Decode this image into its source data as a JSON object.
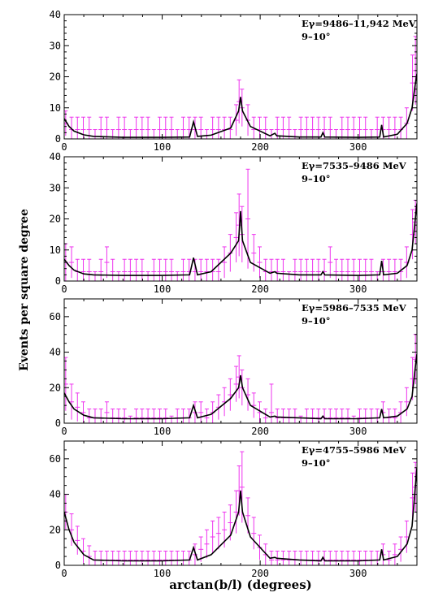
{
  "figure": {
    "ylabel": "Events per square degree",
    "xlabel": "arctan(b/l) (degrees)",
    "colors": {
      "errorbar": "#ee33ee",
      "model": "#000000",
      "frame": "#000000"
    }
  },
  "chart_data": [
    {
      "type": "line",
      "energy_label": "Eγ=9486–11,942 MeV",
      "bin_label": "9–10°",
      "xlim": [
        0,
        360
      ],
      "ylim": [
        0,
        40
      ],
      "xticks": [
        0,
        100,
        200,
        300
      ],
      "yticks": [
        0,
        10,
        20,
        30,
        40
      ],
      "model_curve": {
        "x": [
          0,
          5,
          10,
          20,
          30,
          60,
          100,
          128,
          132,
          136,
          150,
          170,
          178,
          180,
          182,
          190,
          210,
          215,
          217,
          240,
          262,
          264,
          266,
          300,
          322,
          324,
          326,
          340,
          350,
          355,
          358,
          360
        ],
        "y": [
          6.5,
          4,
          2.5,
          1.3,
          0.8,
          0.5,
          0.5,
          0.6,
          5.5,
          0.8,
          1.2,
          3.5,
          9,
          13.5,
          9,
          4,
          1,
          1.8,
          1,
          0.6,
          0.6,
          2,
          0.6,
          0.5,
          0.6,
          4.5,
          0.6,
          1.5,
          5,
          10,
          17,
          21
        ]
      },
      "errorbars": {
        "x": [
          1.5,
          7.5,
          13.5,
          19.5,
          25.5,
          31.5,
          37.5,
          43.5,
          49.5,
          55.5,
          61.5,
          67.5,
          73.5,
          79.5,
          85.5,
          91.5,
          97.5,
          103.5,
          109.5,
          115.5,
          121.5,
          127.5,
          133.5,
          139.5,
          145.5,
          151.5,
          157.5,
          163.5,
          169.5,
          175.5,
          178.5,
          181.5,
          187.5,
          193.5,
          199.5,
          205.5,
          211.5,
          217.5,
          223.5,
          229.5,
          235.5,
          241.5,
          247.5,
          253.5,
          259.5,
          265.5,
          271.5,
          277.5,
          283.5,
          289.5,
          295.5,
          301.5,
          307.5,
          313.5,
          319.5,
          325.5,
          331.5,
          337.5,
          343.5,
          349.5,
          355.5,
          358.5
        ],
        "y": [
          5,
          3,
          3,
          3,
          3,
          0,
          3,
          3,
          0,
          3,
          3,
          0,
          3,
          3,
          3,
          0,
          3,
          3,
          3,
          0,
          3,
          3,
          3,
          3,
          0,
          3,
          3,
          3,
          3,
          6,
          12,
          10,
          6,
          3,
          3,
          3,
          0,
          3,
          3,
          3,
          0,
          3,
          3,
          3,
          3,
          3,
          3,
          0,
          3,
          3,
          3,
          3,
          3,
          0,
          3,
          3,
          3,
          3,
          3,
          5,
          18,
          22
        ],
        "err": [
          4,
          4,
          4,
          4,
          4,
          3,
          4,
          4,
          3,
          4,
          4,
          3,
          4,
          4,
          4,
          3,
          4,
          4,
          4,
          3,
          4,
          4,
          4,
          4,
          3,
          4,
          4,
          4,
          4,
          5,
          7,
          6,
          5,
          4,
          4,
          4,
          3,
          4,
          4,
          4,
          3,
          4,
          4,
          4,
          4,
          4,
          4,
          3,
          4,
          4,
          4,
          4,
          4,
          3,
          4,
          4,
          4,
          4,
          4,
          5,
          9,
          11
        ]
      }
    },
    {
      "type": "line",
      "energy_label": "Eγ=7535–9486 MeV",
      "bin_label": "9–10°",
      "xlim": [
        0,
        360
      ],
      "ylim": [
        0,
        40
      ],
      "xticks": [
        0,
        100,
        200,
        300
      ],
      "yticks": [
        0,
        10,
        20,
        30,
        40
      ],
      "model_curve": {
        "x": [
          0,
          5,
          10,
          20,
          30,
          60,
          100,
          128,
          132,
          136,
          150,
          170,
          178,
          180,
          182,
          190,
          210,
          215,
          217,
          240,
          262,
          264,
          266,
          300,
          322,
          324,
          326,
          340,
          350,
          355,
          358,
          360
        ],
        "y": [
          7,
          5,
          3.5,
          2.3,
          2,
          1.8,
          1.8,
          2,
          7.5,
          2,
          3,
          9,
          13,
          22.5,
          13,
          6,
          2.5,
          3,
          2.5,
          2,
          2,
          3,
          2,
          1.8,
          2,
          6.5,
          2,
          2.5,
          5,
          10,
          19,
          25
        ]
      },
      "errorbars": {
        "x": [
          1.5,
          7.5,
          13.5,
          19.5,
          25.5,
          31.5,
          37.5,
          43.5,
          49.5,
          55.5,
          61.5,
          67.5,
          73.5,
          79.5,
          85.5,
          91.5,
          97.5,
          103.5,
          109.5,
          115.5,
          121.5,
          127.5,
          133.5,
          139.5,
          145.5,
          151.5,
          157.5,
          163.5,
          169.5,
          175.5,
          178.5,
          181.5,
          187.5,
          193.5,
          199.5,
          205.5,
          211.5,
          217.5,
          223.5,
          229.5,
          235.5,
          241.5,
          247.5,
          253.5,
          259.5,
          265.5,
          271.5,
          277.5,
          283.5,
          289.5,
          295.5,
          301.5,
          307.5,
          313.5,
          319.5,
          325.5,
          331.5,
          337.5,
          343.5,
          349.5,
          355.5,
          358.5
        ],
        "y": [
          6,
          6,
          3,
          3,
          3,
          0,
          3,
          6,
          3,
          0,
          3,
          3,
          3,
          3,
          0,
          3,
          3,
          3,
          3,
          0,
          3,
          3,
          3,
          3,
          3,
          3,
          3,
          6,
          9,
          14,
          18,
          15,
          20,
          9,
          6,
          3,
          3,
          3,
          3,
          0,
          3,
          3,
          3,
          3,
          3,
          3,
          6,
          3,
          3,
          3,
          3,
          3,
          3,
          3,
          0,
          3,
          3,
          3,
          3,
          6,
          15,
          19
        ],
        "err": [
          6,
          5,
          4,
          4,
          4,
          3,
          4,
          5,
          4,
          3,
          4,
          4,
          4,
          4,
          3,
          4,
          4,
          4,
          4,
          3,
          4,
          4,
          4,
          4,
          4,
          4,
          4,
          5,
          6,
          8,
          10,
          9,
          16,
          6,
          5,
          4,
          4,
          4,
          4,
          3,
          4,
          4,
          4,
          4,
          4,
          4,
          5,
          4,
          4,
          4,
          4,
          4,
          4,
          4,
          3,
          4,
          4,
          4,
          4,
          5,
          8,
          7
        ]
      }
    },
    {
      "type": "line",
      "energy_label": "Eγ=5986–7535 MeV",
      "bin_label": "9–10°",
      "xlim": [
        0,
        360
      ],
      "ylim": [
        0,
        70
      ],
      "xticks": [
        0,
        100,
        200,
        300
      ],
      "yticks": [
        0,
        20,
        40,
        60
      ],
      "model_curve": {
        "x": [
          0,
          5,
          10,
          20,
          30,
          60,
          100,
          128,
          132,
          136,
          150,
          170,
          178,
          180,
          182,
          190,
          210,
          215,
          217,
          240,
          262,
          264,
          266,
          300,
          322,
          324,
          326,
          340,
          350,
          355,
          358,
          360
        ],
        "y": [
          17,
          12,
          8,
          4.5,
          3,
          2.5,
          2.5,
          3,
          10,
          3,
          5,
          14,
          20,
          27,
          20,
          10,
          3.5,
          4,
          3.5,
          3,
          2.5,
          4,
          2.5,
          2.5,
          3,
          8,
          3,
          4,
          8,
          15,
          30,
          39
        ]
      },
      "errorbars": {
        "x": [
          1.5,
          7.5,
          13.5,
          19.5,
          25.5,
          31.5,
          37.5,
          43.5,
          49.5,
          55.5,
          61.5,
          67.5,
          73.5,
          79.5,
          85.5,
          91.5,
          97.5,
          103.5,
          109.5,
          115.5,
          121.5,
          127.5,
          133.5,
          139.5,
          145.5,
          151.5,
          157.5,
          163.5,
          169.5,
          175.5,
          178.5,
          181.5,
          187.5,
          193.5,
          199.5,
          205.5,
          211.5,
          217.5,
          223.5,
          229.5,
          235.5,
          241.5,
          247.5,
          253.5,
          259.5,
          265.5,
          271.5,
          277.5,
          283.5,
          289.5,
          295.5,
          301.5,
          307.5,
          313.5,
          319.5,
          325.5,
          331.5,
          337.5,
          343.5,
          349.5,
          355.5,
          358.5
        ],
        "y": [
          22,
          12,
          9,
          6,
          3,
          3,
          3,
          6,
          3,
          3,
          3,
          0,
          3,
          3,
          3,
          3,
          3,
          3,
          0,
          3,
          3,
          3,
          6,
          6,
          3,
          6,
          9,
          12,
          16,
          22,
          26,
          20,
          16,
          10,
          6,
          3,
          6,
          3,
          3,
          3,
          3,
          0,
          3,
          3,
          3,
          3,
          3,
          3,
          3,
          3,
          0,
          3,
          3,
          3,
          3,
          6,
          3,
          3,
          6,
          12,
          25,
          36
        ],
        "err": [
          15,
          10,
          8,
          6,
          5,
          5,
          5,
          6,
          5,
          5,
          5,
          4,
          5,
          5,
          5,
          5,
          5,
          5,
          4,
          5,
          5,
          5,
          6,
          6,
          5,
          6,
          7,
          8,
          9,
          10,
          12,
          10,
          9,
          7,
          6,
          5,
          16,
          5,
          5,
          5,
          5,
          4,
          5,
          5,
          5,
          5,
          5,
          5,
          5,
          5,
          4,
          5,
          5,
          5,
          5,
          6,
          5,
          5,
          6,
          8,
          12,
          14
        ]
      }
    },
    {
      "type": "line",
      "energy_label": "Eγ=4755–5986 MeV",
      "bin_label": "9–10°",
      "xlim": [
        0,
        360
      ],
      "ylim": [
        0,
        70
      ],
      "xticks": [
        0,
        100,
        200,
        300
      ],
      "yticks": [
        0,
        20,
        40,
        60
      ],
      "model_curve": {
        "x": [
          0,
          5,
          10,
          20,
          30,
          60,
          100,
          128,
          132,
          136,
          150,
          170,
          178,
          180,
          182,
          190,
          210,
          215,
          217,
          240,
          262,
          264,
          266,
          300,
          322,
          324,
          326,
          340,
          350,
          355,
          358,
          360
        ],
        "y": [
          30,
          20,
          13,
          6,
          3,
          2.5,
          2.5,
          3,
          10,
          3,
          6,
          17,
          30,
          42,
          30,
          16,
          4,
          4.5,
          4,
          3,
          2.5,
          4.5,
          2.5,
          2.5,
          3,
          9,
          3,
          5,
          12,
          22,
          42,
          55
        ]
      },
      "errorbars": {
        "x": [
          1.5,
          7.5,
          13.5,
          19.5,
          25.5,
          31.5,
          37.5,
          43.5,
          49.5,
          55.5,
          61.5,
          67.5,
          73.5,
          79.5,
          85.5,
          91.5,
          97.5,
          103.5,
          109.5,
          115.5,
          121.5,
          127.5,
          133.5,
          139.5,
          145.5,
          151.5,
          157.5,
          163.5,
          169.5,
          175.5,
          178.5,
          181.5,
          187.5,
          193.5,
          199.5,
          205.5,
          211.5,
          217.5,
          223.5,
          229.5,
          235.5,
          241.5,
          247.5,
          253.5,
          259.5,
          265.5,
          271.5,
          277.5,
          283.5,
          289.5,
          295.5,
          301.5,
          307.5,
          313.5,
          319.5,
          325.5,
          331.5,
          337.5,
          343.5,
          349.5,
          355.5,
          358.5
        ],
        "y": [
          30,
          20,
          14,
          8,
          5,
          3,
          3,
          3,
          3,
          3,
          3,
          3,
          3,
          3,
          3,
          3,
          3,
          3,
          3,
          3,
          3,
          3,
          6,
          9,
          12,
          16,
          18,
          20,
          24,
          30,
          42,
          44,
          28,
          18,
          10,
          6,
          3,
          3,
          3,
          3,
          3,
          3,
          3,
          3,
          3,
          3,
          3,
          3,
          3,
          3,
          3,
          3,
          3,
          3,
          3,
          6,
          3,
          6,
          9,
          16,
          38,
          44
        ],
        "err": [
          10,
          9,
          8,
          7,
          6,
          5,
          5,
          5,
          5,
          5,
          5,
          5,
          5,
          5,
          5,
          5,
          5,
          5,
          5,
          5,
          5,
          5,
          6,
          7,
          8,
          9,
          9,
          10,
          10,
          12,
          14,
          20,
          10,
          9,
          7,
          6,
          5,
          5,
          5,
          5,
          5,
          5,
          5,
          5,
          5,
          5,
          5,
          5,
          5,
          5,
          5,
          5,
          5,
          5,
          5,
          6,
          5,
          6,
          7,
          9,
          14,
          14
        ]
      }
    }
  ]
}
